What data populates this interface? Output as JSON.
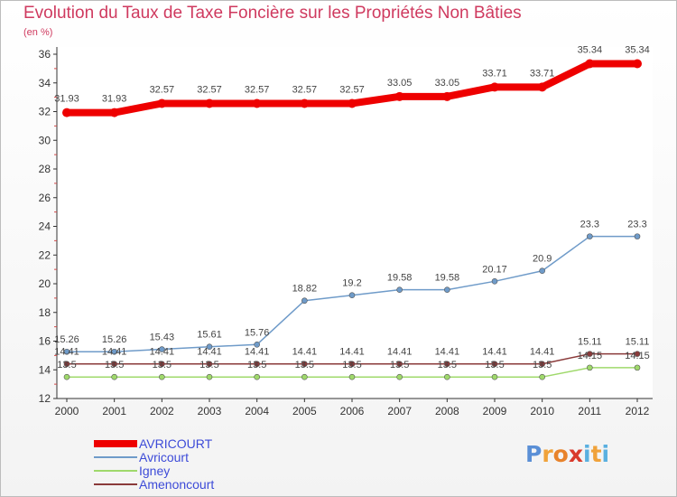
{
  "title": "Evolution du Taux de Taxe Foncière sur les Propriétés Non Bâties",
  "unit_label": "(en %)",
  "logo": {
    "letters": [
      "P",
      "r",
      "o",
      "x",
      "i",
      "t",
      "i"
    ],
    "colors": [
      "#5a8fd6",
      "#f0a23a",
      "#e8832b",
      "#d93a2b",
      "#5ab0e0",
      "#f0a23a",
      "#5ab0e0"
    ]
  },
  "chart_data": {
    "type": "line",
    "title": "Evolution du Taux de Taxe Foncière sur les Propriétés Non Bâties",
    "ylabel": "(en %)",
    "x": [
      "2000",
      "2001",
      "2002",
      "2003",
      "2004",
      "2005",
      "2006",
      "2007",
      "2008",
      "2009",
      "2010",
      "2011",
      "2012"
    ],
    "ylim": [
      12,
      36
    ],
    "yticks": [
      "12",
      "14",
      "16",
      "18",
      "20",
      "22",
      "24",
      "26",
      "28",
      "30",
      "32",
      "34",
      "36"
    ],
    "grid": false,
    "legend": "bottom-left",
    "series": [
      {
        "name": "AVRICOURT",
        "color": "#ee0000",
        "values": [
          31.93,
          31.93,
          32.57,
          32.57,
          32.57,
          32.57,
          32.57,
          33.05,
          33.05,
          33.71,
          33.71,
          35.34,
          35.34
        ],
        "labels": [
          "31.93",
          "31.93",
          "32.57",
          "32.57",
          "32.57",
          "32.57",
          "32.57",
          "33.05",
          "33.05",
          "33.71",
          "33.71",
          "35.34",
          "35.34"
        ]
      },
      {
        "name": "Avricourt",
        "color": "#6f9bc9",
        "values": [
          15.26,
          15.26,
          15.43,
          15.61,
          15.76,
          18.82,
          19.2,
          19.58,
          19.58,
          20.17,
          20.9,
          23.3,
          23.3
        ],
        "labels": [
          "15.26",
          "15.26",
          "15.43",
          "15.61",
          "15.76",
          "18.82",
          "19.2",
          "19.58",
          "19.58",
          "20.17",
          "20.9",
          "23.3",
          "23.3"
        ]
      },
      {
        "name": "Igney",
        "color": "#9fd96b",
        "values": [
          13.5,
          13.5,
          13.5,
          13.5,
          13.5,
          13.5,
          13.5,
          13.5,
          13.5,
          13.5,
          13.5,
          14.15,
          14.15
        ],
        "labels": [
          "13.5",
          "13.5",
          "13.5",
          "13.5",
          "13.5",
          "13.5",
          "13.5",
          "13.5",
          "13.5",
          "13.5",
          "13.5",
          "14.15",
          "14.15"
        ]
      },
      {
        "name": "Amenoncourt",
        "color": "#8a3a3a",
        "values": [
          14.41,
          14.41,
          14.41,
          14.41,
          14.41,
          14.41,
          14.41,
          14.41,
          14.41,
          14.41,
          14.41,
          15.11,
          15.11
        ],
        "labels": [
          "14.41",
          "14.41",
          "14.41",
          "14.41",
          "14.41",
          "14.41",
          "14.41",
          "14.41",
          "14.41",
          "14.41",
          "14.41",
          "15.11",
          "15.11"
        ]
      }
    ]
  }
}
